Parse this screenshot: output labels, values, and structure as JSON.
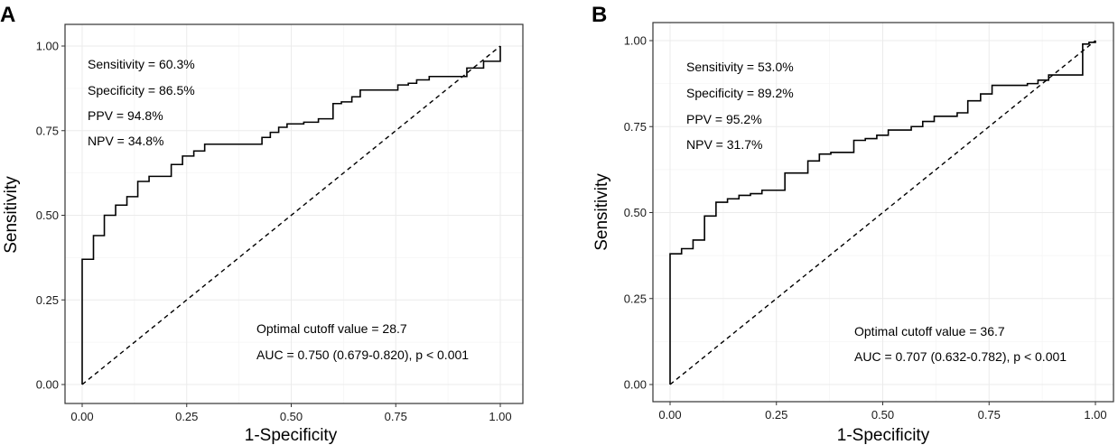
{
  "chart_data": [
    {
      "panel": "A",
      "type": "line",
      "xlabel": "1-Specificity",
      "ylabel": "Sensitivity",
      "xlim": [
        0,
        1
      ],
      "ylim": [
        0,
        1
      ],
      "x_ticks": [
        "0.00",
        "0.25",
        "0.50",
        "0.75",
        "1.00"
      ],
      "y_ticks": [
        "0.00",
        "0.25",
        "0.50",
        "0.75",
        "1.00"
      ],
      "annotations": {
        "sensitivity": "Sensitivity = 60.3%",
        "specificity": "Specificity = 86.5%",
        "ppv": "PPV = 94.8%",
        "npv": "NPV = 34.8%",
        "cutoff": "Optimal cutoff value = 28.7",
        "auc": "AUC = 0.750 (0.679-0.820), p < 0.001"
      },
      "reference_line": [
        [
          0,
          0
        ],
        [
          1,
          1
        ]
      ],
      "series": [
        {
          "name": "ROC",
          "points": [
            [
              0.0,
              0.0
            ],
            [
              0.0,
              0.37
            ],
            [
              0.027,
              0.37
            ],
            [
              0.027,
              0.44
            ],
            [
              0.053,
              0.44
            ],
            [
              0.053,
              0.5
            ],
            [
              0.08,
              0.5
            ],
            [
              0.08,
              0.53
            ],
            [
              0.107,
              0.53
            ],
            [
              0.107,
              0.555
            ],
            [
              0.133,
              0.555
            ],
            [
              0.133,
              0.6
            ],
            [
              0.16,
              0.6
            ],
            [
              0.16,
              0.615
            ],
            [
              0.213,
              0.615
            ],
            [
              0.213,
              0.65
            ],
            [
              0.24,
              0.65
            ],
            [
              0.24,
              0.675
            ],
            [
              0.267,
              0.675
            ],
            [
              0.267,
              0.69
            ],
            [
              0.293,
              0.69
            ],
            [
              0.293,
              0.71
            ],
            [
              0.43,
              0.71
            ],
            [
              0.43,
              0.73
            ],
            [
              0.45,
              0.73
            ],
            [
              0.45,
              0.745
            ],
            [
              0.47,
              0.745
            ],
            [
              0.47,
              0.76
            ],
            [
              0.49,
              0.76
            ],
            [
              0.49,
              0.77
            ],
            [
              0.53,
              0.77
            ],
            [
              0.53,
              0.775
            ],
            [
              0.565,
              0.775
            ],
            [
              0.565,
              0.785
            ],
            [
              0.6,
              0.785
            ],
            [
              0.6,
              0.83
            ],
            [
              0.62,
              0.83
            ],
            [
              0.62,
              0.835
            ],
            [
              0.645,
              0.835
            ],
            [
              0.645,
              0.85
            ],
            [
              0.665,
              0.85
            ],
            [
              0.665,
              0.87
            ],
            [
              0.755,
              0.87
            ],
            [
              0.755,
              0.885
            ],
            [
              0.78,
              0.885
            ],
            [
              0.78,
              0.89
            ],
            [
              0.8,
              0.89
            ],
            [
              0.8,
              0.9
            ],
            [
              0.83,
              0.9
            ],
            [
              0.83,
              0.91
            ],
            [
              0.92,
              0.91
            ],
            [
              0.92,
              0.935
            ],
            [
              0.96,
              0.935
            ],
            [
              0.96,
              0.955
            ],
            [
              1.0,
              0.955
            ],
            [
              1.0,
              1.0
            ]
          ]
        }
      ]
    },
    {
      "panel": "B",
      "type": "line",
      "xlabel": "1-Specificity",
      "ylabel": "Sensitivity",
      "xlim": [
        0,
        1
      ],
      "ylim": [
        0,
        1
      ],
      "x_ticks": [
        "0.00",
        "0.25",
        "0.50",
        "0.75",
        "1.00"
      ],
      "y_ticks": [
        "0.00",
        "0.25",
        "0.50",
        "0.75",
        "1.00"
      ],
      "annotations": {
        "sensitivity": "Sensitivity = 53.0%",
        "specificity": "Specificity = 89.2%",
        "ppv": "PPV = 95.2%",
        "npv": "NPV = 31.7%",
        "cutoff": "Optimal cutoff value = 36.7",
        "auc": "AUC = 0.707 (0.632-0.782), p < 0.001"
      },
      "reference_line": [
        [
          0,
          0
        ],
        [
          1,
          1
        ]
      ],
      "series": [
        {
          "name": "ROC",
          "points": [
            [
              0.0,
              0.0
            ],
            [
              0.0,
              0.38
            ],
            [
              0.027,
              0.38
            ],
            [
              0.027,
              0.395
            ],
            [
              0.054,
              0.395
            ],
            [
              0.054,
              0.42
            ],
            [
              0.081,
              0.42
            ],
            [
              0.081,
              0.49
            ],
            [
              0.108,
              0.49
            ],
            [
              0.108,
              0.53
            ],
            [
              0.135,
              0.53
            ],
            [
              0.135,
              0.54
            ],
            [
              0.162,
              0.54
            ],
            [
              0.162,
              0.55
            ],
            [
              0.189,
              0.55
            ],
            [
              0.189,
              0.555
            ],
            [
              0.216,
              0.555
            ],
            [
              0.216,
              0.565
            ],
            [
              0.27,
              0.565
            ],
            [
              0.27,
              0.615
            ],
            [
              0.324,
              0.615
            ],
            [
              0.324,
              0.65
            ],
            [
              0.351,
              0.65
            ],
            [
              0.351,
              0.67
            ],
            [
              0.378,
              0.67
            ],
            [
              0.378,
              0.675
            ],
            [
              0.432,
              0.675
            ],
            [
              0.432,
              0.71
            ],
            [
              0.459,
              0.71
            ],
            [
              0.459,
              0.715
            ],
            [
              0.486,
              0.715
            ],
            [
              0.486,
              0.725
            ],
            [
              0.513,
              0.725
            ],
            [
              0.513,
              0.74
            ],
            [
              0.567,
              0.74
            ],
            [
              0.567,
              0.75
            ],
            [
              0.594,
              0.75
            ],
            [
              0.594,
              0.765
            ],
            [
              0.621,
              0.765
            ],
            [
              0.621,
              0.78
            ],
            [
              0.675,
              0.78
            ],
            [
              0.675,
              0.79
            ],
            [
              0.7,
              0.79
            ],
            [
              0.7,
              0.825
            ],
            [
              0.73,
              0.825
            ],
            [
              0.73,
              0.845
            ],
            [
              0.757,
              0.845
            ],
            [
              0.757,
              0.87
            ],
            [
              0.84,
              0.87
            ],
            [
              0.84,
              0.875
            ],
            [
              0.865,
              0.875
            ],
            [
              0.865,
              0.885
            ],
            [
              0.89,
              0.885
            ],
            [
              0.89,
              0.9
            ],
            [
              0.97,
              0.9
            ],
            [
              0.97,
              0.99
            ],
            [
              0.985,
              0.99
            ],
            [
              0.985,
              0.995
            ],
            [
              1.0,
              0.995
            ],
            [
              1.0,
              1.0
            ]
          ]
        }
      ]
    }
  ],
  "panels": {
    "a": {
      "label": "A"
    },
    "b": {
      "label": "B"
    }
  }
}
